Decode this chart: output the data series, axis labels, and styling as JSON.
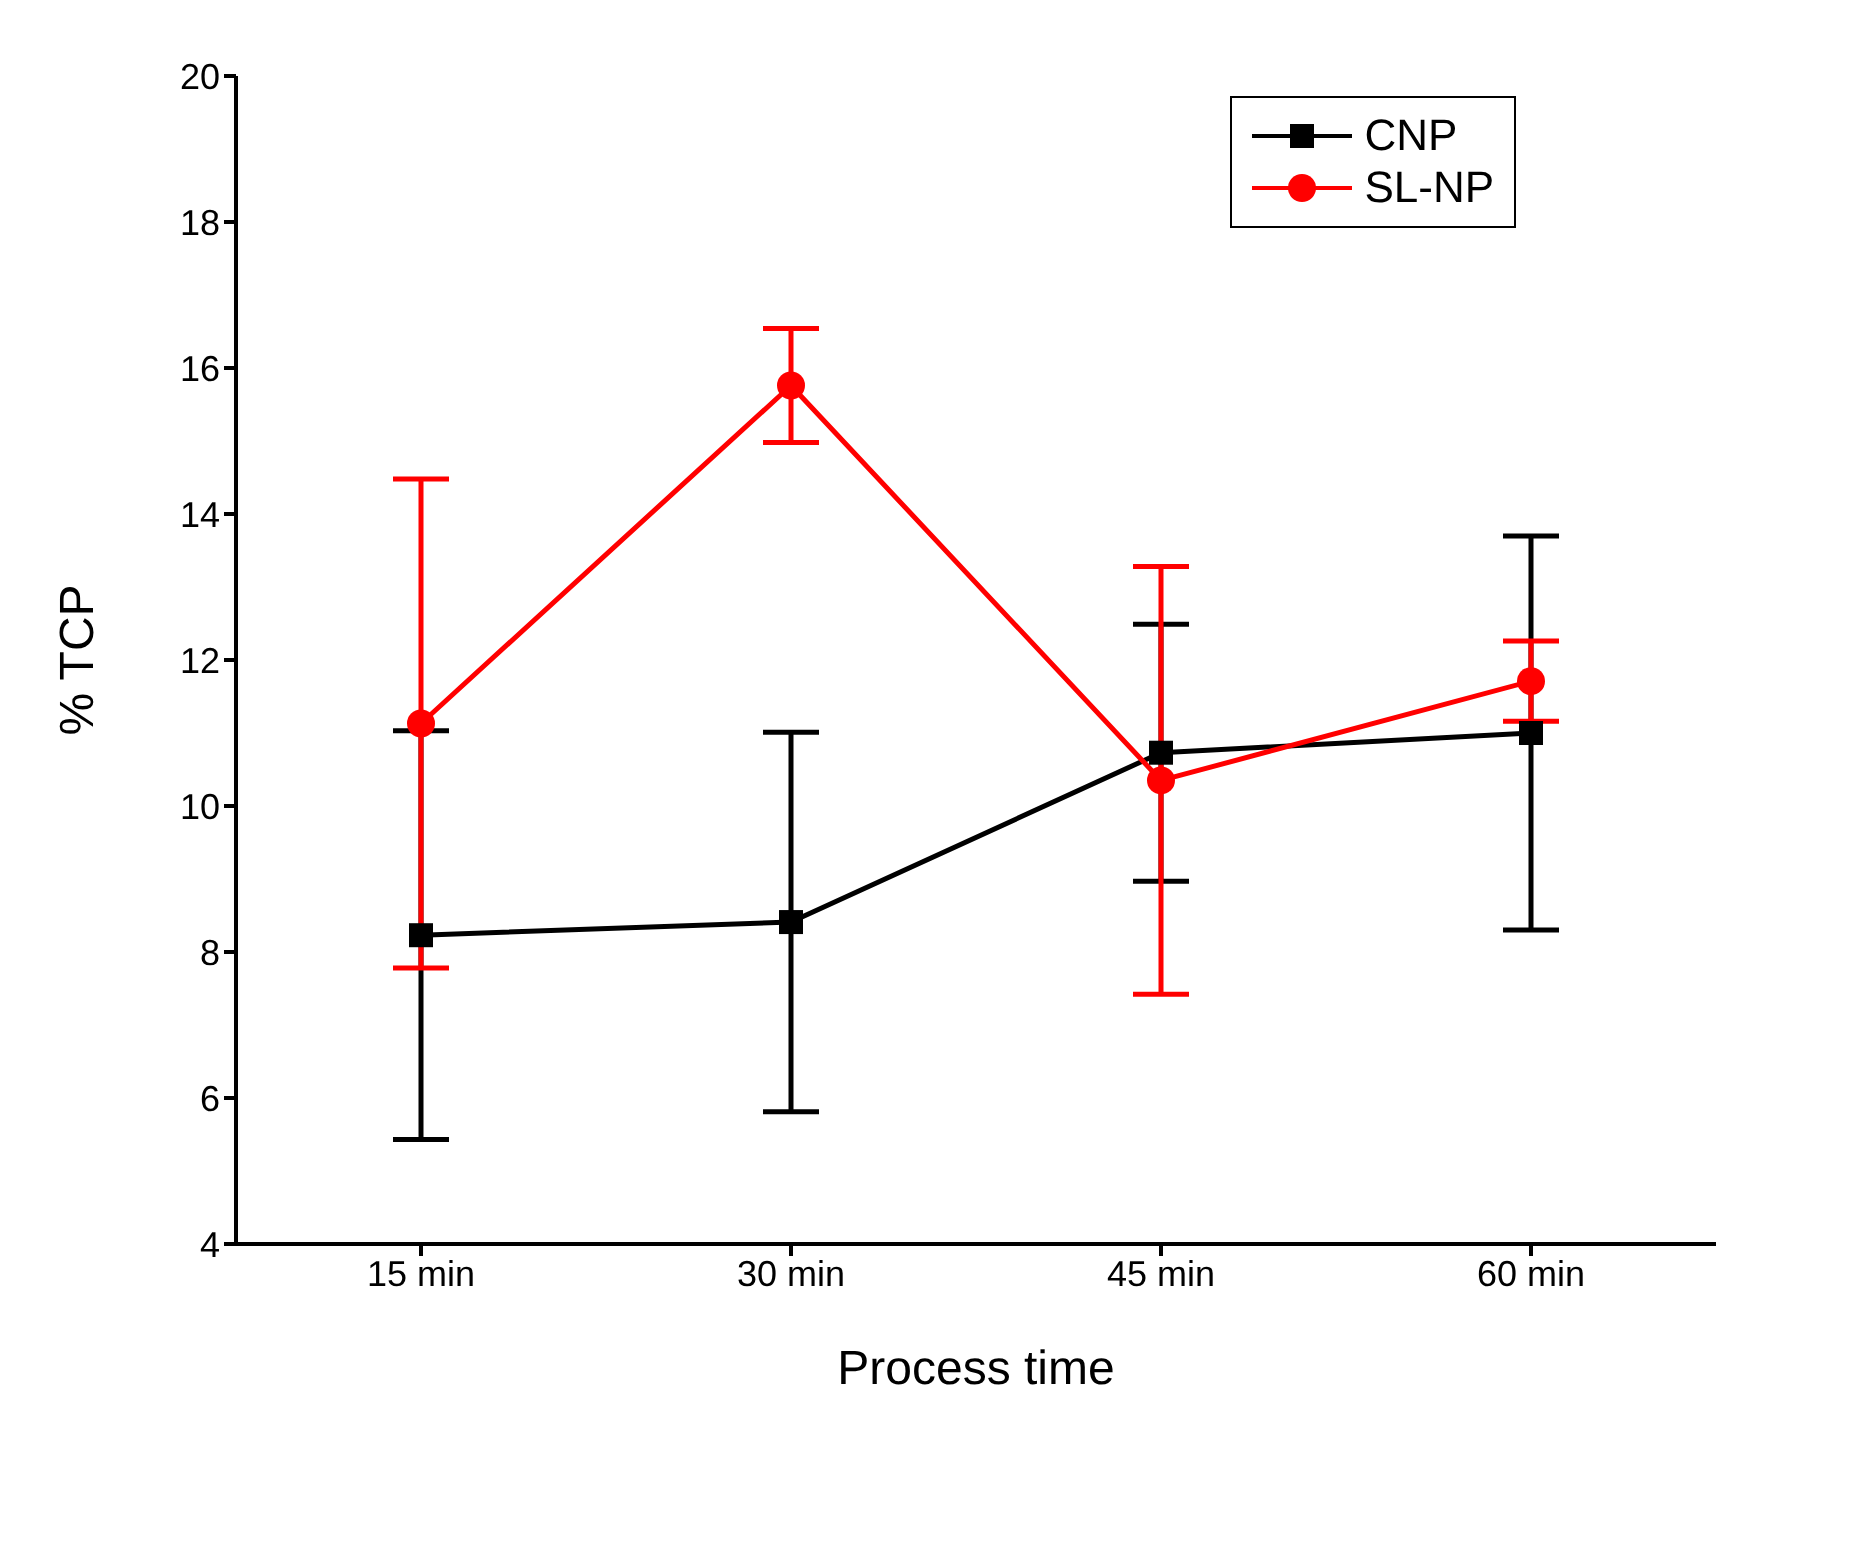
{
  "chart_data": {
    "type": "line",
    "xlabel": "Process time",
    "ylabel": "% TCP",
    "categories": [
      "15 min",
      "30 min",
      "45 min",
      "60 min"
    ],
    "series": [
      {
        "name": "CNP",
        "color": "#000000",
        "marker": "square",
        "values": [
          8.23,
          8.41,
          10.73,
          11.0
        ],
        "errors": [
          2.8,
          2.6,
          1.76,
          2.7
        ]
      },
      {
        "name": "SL-NP",
        "color": "#ff0000",
        "marker": "circle",
        "values": [
          11.13,
          15.76,
          10.35,
          11.71
        ],
        "errors": [
          3.35,
          0.78,
          2.93,
          0.55
        ]
      }
    ],
    "ylim": [
      4,
      20
    ],
    "yticks": [
      4,
      6,
      8,
      10,
      12,
      14,
      16,
      18,
      20
    ],
    "legend": "top right",
    "line_style": "solid"
  }
}
